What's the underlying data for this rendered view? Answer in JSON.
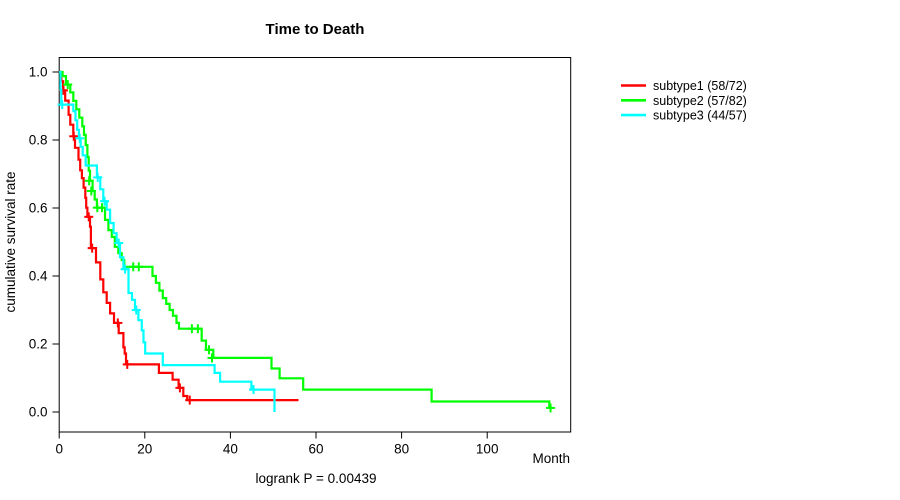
{
  "chart_data": {
    "type": "line",
    "subtype": "kaplan-meier-step-curves",
    "title": "Time to Death",
    "xlabel": "Month",
    "ylabel": "cumulative survival rate",
    "annotation": "logrank P = 0.00439",
    "xlim": [
      0,
      119
    ],
    "ylim": [
      0.0,
      1.0
    ],
    "x_ticks": [
      0,
      20,
      40,
      60,
      80,
      100
    ],
    "y_ticks": [
      "0.0",
      "0.2",
      "0.4",
      "0.6",
      "0.8",
      "1.0"
    ],
    "grid": false,
    "legend_position": "right-outside",
    "series": [
      {
        "name": "subtype1",
        "legend_label": "subtype1 (58/72)",
        "color": "#FF0000",
        "n_total": 72,
        "n_events": 58,
        "steps": [
          [
            0,
            1.0
          ],
          [
            0.5,
            0.973
          ],
          [
            0.9,
            0.946
          ],
          [
            1.4,
            0.916
          ],
          [
            2.2,
            0.874
          ],
          [
            2.6,
            0.845
          ],
          [
            3.3,
            0.811
          ],
          [
            3.7,
            0.777
          ],
          [
            4.5,
            0.742
          ],
          [
            4.9,
            0.711
          ],
          [
            5.3,
            0.688
          ],
          [
            5.7,
            0.66
          ],
          [
            6.1,
            0.63
          ],
          [
            6.3,
            0.601
          ],
          [
            6.6,
            0.574
          ],
          [
            7.2,
            0.545
          ],
          [
            7.4,
            0.482
          ],
          [
            8.6,
            0.44
          ],
          [
            9.6,
            0.39
          ],
          [
            10.3,
            0.352
          ],
          [
            11.1,
            0.321
          ],
          [
            11.9,
            0.29
          ],
          [
            12.8,
            0.262
          ],
          [
            13.9,
            0.232
          ],
          [
            15.0,
            0.19
          ],
          [
            15.3,
            0.172
          ],
          [
            15.6,
            0.14
          ],
          [
            23.3,
            0.115
          ],
          [
            26.5,
            0.095
          ],
          [
            27.9,
            0.071
          ],
          [
            29.0,
            0.047
          ],
          [
            29.9,
            0.035
          ]
        ],
        "censors": [
          [
            1.0,
            0.946
          ],
          [
            3.4,
            0.811
          ],
          [
            6.9,
            0.574
          ],
          [
            7.7,
            0.482
          ],
          [
            13.7,
            0.262
          ],
          [
            15.9,
            0.14
          ],
          [
            28.2,
            0.071
          ],
          [
            30.5,
            0.035
          ]
        ],
        "end_month": 55.9
      },
      {
        "name": "subtype2",
        "legend_label": "subtype2 (57/82)",
        "color": "#00FF00",
        "n_total": 82,
        "n_events": 57,
        "steps": [
          [
            0,
            1.0
          ],
          [
            0.8,
            0.988
          ],
          [
            1.6,
            0.963
          ],
          [
            2.6,
            0.94
          ],
          [
            3.3,
            0.915
          ],
          [
            4.0,
            0.89
          ],
          [
            4.7,
            0.866
          ],
          [
            5.4,
            0.84
          ],
          [
            5.8,
            0.815
          ],
          [
            6.2,
            0.785
          ],
          [
            6.6,
            0.75
          ],
          [
            6.9,
            0.71
          ],
          [
            7.2,
            0.68
          ],
          [
            7.8,
            0.65
          ],
          [
            8.3,
            0.625
          ],
          [
            8.8,
            0.601
          ],
          [
            10.7,
            0.565
          ],
          [
            11.5,
            0.535
          ],
          [
            12.3,
            0.515
          ],
          [
            13.0,
            0.486
          ],
          [
            13.8,
            0.467
          ],
          [
            14.6,
            0.447
          ],
          [
            15.2,
            0.427
          ],
          [
            21.8,
            0.4
          ],
          [
            22.6,
            0.38
          ],
          [
            23.4,
            0.357
          ],
          [
            24.2,
            0.335
          ],
          [
            25.0,
            0.318
          ],
          [
            25.8,
            0.3
          ],
          [
            26.6,
            0.283
          ],
          [
            27.4,
            0.262
          ],
          [
            28.0,
            0.245
          ],
          [
            33.3,
            0.21
          ],
          [
            34.3,
            0.183
          ],
          [
            36.0,
            0.159
          ],
          [
            49.6,
            0.128
          ],
          [
            51.5,
            0.099
          ],
          [
            57.0,
            0.066
          ],
          [
            87.0,
            0.031
          ],
          [
            114.5,
            0.012
          ]
        ],
        "censors": [
          [
            2.0,
            0.963
          ],
          [
            7.0,
            0.68
          ],
          [
            7.5,
            0.65
          ],
          [
            8.9,
            0.601
          ],
          [
            10.0,
            0.601
          ],
          [
            17.3,
            0.427
          ],
          [
            18.6,
            0.427
          ],
          [
            31.0,
            0.245
          ],
          [
            32.4,
            0.245
          ],
          [
            35.0,
            0.183
          ],
          [
            35.7,
            0.159
          ],
          [
            114.8,
            0.012
          ]
        ],
        "end_month": 115.2
      },
      {
        "name": "subtype3",
        "legend_label": "subtype3 (44/57)",
        "color": "#00FFFF",
        "n_total": 57,
        "n_events": 44,
        "steps": [
          [
            0,
            1.0
          ],
          [
            0.3,
            0.947
          ],
          [
            0.5,
            0.904
          ],
          [
            3.3,
            0.885
          ],
          [
            3.8,
            0.858
          ],
          [
            4.2,
            0.83
          ],
          [
            4.6,
            0.805
          ],
          [
            5.0,
            0.78
          ],
          [
            5.5,
            0.755
          ],
          [
            6.2,
            0.725
          ],
          [
            8.8,
            0.69
          ],
          [
            9.6,
            0.655
          ],
          [
            10.3,
            0.62
          ],
          [
            11.1,
            0.595
          ],
          [
            11.9,
            0.556
          ],
          [
            12.7,
            0.526
          ],
          [
            13.4,
            0.497
          ],
          [
            14.2,
            0.455
          ],
          [
            15.0,
            0.42
          ],
          [
            16.2,
            0.35
          ],
          [
            17.0,
            0.33
          ],
          [
            17.7,
            0.3
          ],
          [
            18.5,
            0.27
          ],
          [
            19.3,
            0.24
          ],
          [
            19.7,
            0.205
          ],
          [
            20.1,
            0.172
          ],
          [
            24.2,
            0.138
          ],
          [
            36.3,
            0.115
          ],
          [
            37.6,
            0.089
          ],
          [
            44.9,
            0.066
          ],
          [
            50.3,
            0.0
          ]
        ],
        "censors": [
          [
            0.7,
            0.904
          ],
          [
            4.8,
            0.805
          ],
          [
            9.0,
            0.69
          ],
          [
            10.6,
            0.62
          ],
          [
            13.9,
            0.497
          ],
          [
            15.4,
            0.42
          ],
          [
            18.0,
            0.3
          ],
          [
            45.4,
            0.066
          ]
        ],
        "end_month": 50.3
      }
    ]
  }
}
